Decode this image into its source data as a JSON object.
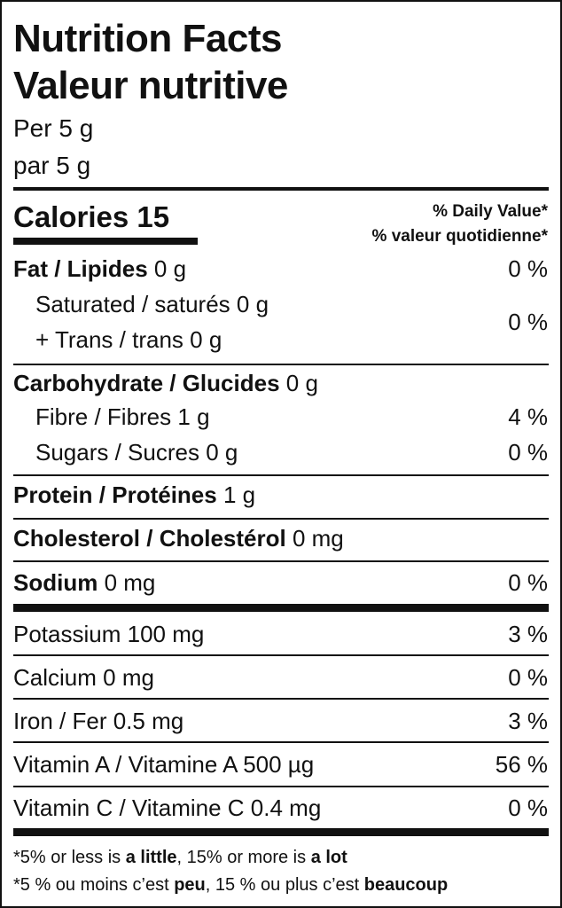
{
  "title_en": "Nutrition Facts",
  "title_fr": "Valeur nutritive",
  "serving_en": "Per 5 g",
  "serving_fr": "par 5 g",
  "calories_label": "Calories 15",
  "dv_header_en": "% Daily Value*",
  "dv_header_fr": "% valeur quotidienne*",
  "nutrients": {
    "fat": {
      "label": "Fat / Lipides",
      "amount": "0 g",
      "dv": "0 %"
    },
    "saturated": {
      "label": "Saturated / saturés",
      "amount": "0 g"
    },
    "trans": {
      "label": "+ Trans / trans",
      "amount": "0 g"
    },
    "sat_trans_dv": "0 %",
    "carbohydrate": {
      "label": "Carbohydrate / Glucides",
      "amount": "0 g"
    },
    "fibre": {
      "label": "Fibre / Fibres",
      "amount": "1 g",
      "dv": "4 %"
    },
    "sugars": {
      "label": "Sugars / Sucres",
      "amount": "0 g",
      "dv": "0 %"
    },
    "protein": {
      "label": "Protein / Protéines",
      "amount": "1 g"
    },
    "cholesterol": {
      "label": "Cholesterol / Cholestérol",
      "amount": "0 mg"
    },
    "sodium": {
      "label": "Sodium",
      "amount": "0 mg",
      "dv": "0 %"
    }
  },
  "micros": [
    {
      "text": "Potassium 100 mg",
      "dv": "3 %"
    },
    {
      "text": "Calcium 0 mg",
      "dv": "0 %"
    },
    {
      "text": "Iron / Fer 0.5 mg",
      "dv": "3 %"
    },
    {
      "text": "Vitamin A / Vitamine A 500 µg",
      "dv": "56 %"
    },
    {
      "text": "Vitamin C / Vitamine C 0.4 mg",
      "dv": "0 %"
    }
  ],
  "footnote_en": {
    "a": "*5% or less is ",
    "b": "a little",
    "c": ", 15% or more is ",
    "d": "a lot"
  },
  "footnote_fr": {
    "a": "*5 % ou moins c’est ",
    "b": "peu",
    "c": ", 15 % ou plus c’est ",
    "d": "beaucoup"
  }
}
